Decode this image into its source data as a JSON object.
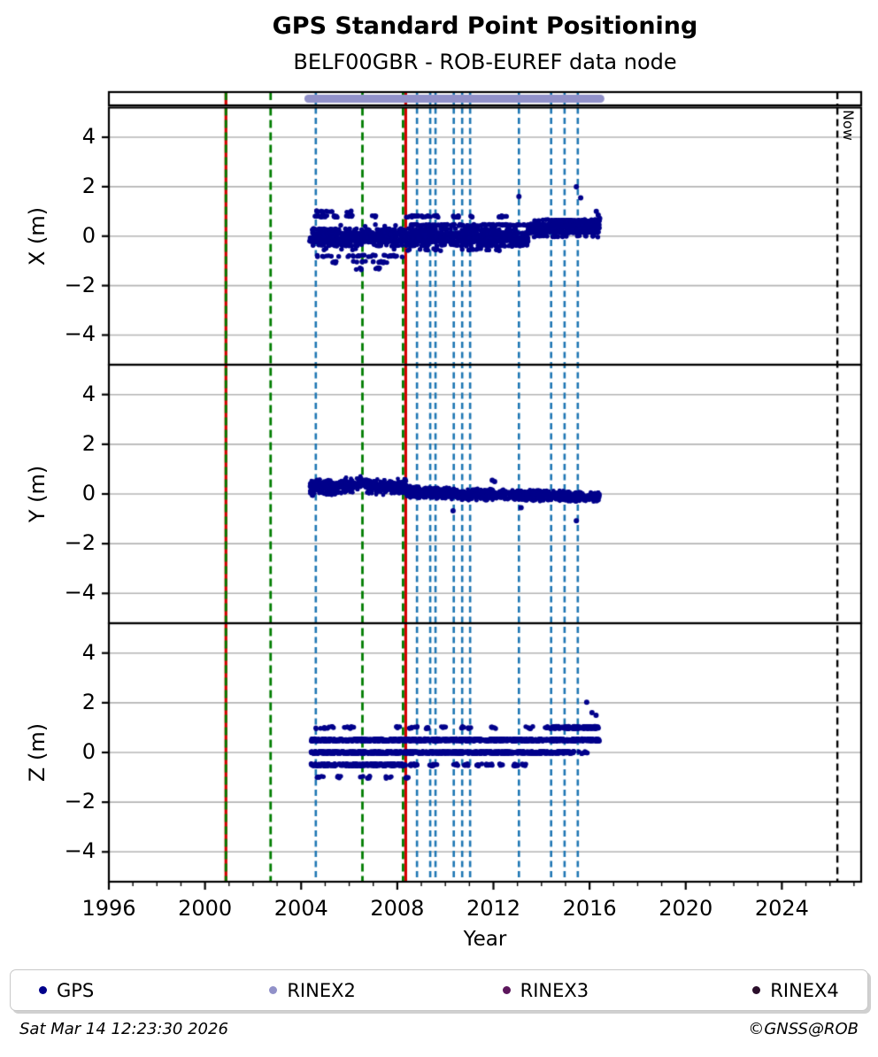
{
  "header": {
    "title": "GPS Standard Point Positioning",
    "subtitle": "BELF00GBR - ROB-EUREF data node"
  },
  "footer": {
    "timestamp": "Sat Mar 14 12:23:30 2026",
    "credit": "©GNSS@ROB"
  },
  "legend": [
    {
      "label": "GPS",
      "color": "#00008b"
    },
    {
      "label": "RINEX2",
      "color": "#9191c9"
    },
    {
      "label": "RINEX3",
      "color": "#5c165c"
    },
    {
      "label": "RINEX4",
      "color": "#2a0e2a"
    }
  ],
  "colors": {
    "gps": "#00008b",
    "rinex2_band": "#9191c9",
    "event_blue": "#1f77b4",
    "event_green": "#007d00",
    "event_red": "#d40000",
    "now_line": "#000000",
    "grid": "#b4b4b4",
    "spine": "#000000"
  },
  "chart_data": {
    "type": "scatter",
    "title": "GPS Standard Point Positioning",
    "subtitle": "BELF00GBR - ROB-EUREF data node",
    "xlabel": "Year",
    "x_range": [
      1996,
      2027.3
    ],
    "x_major_ticks": [
      1996,
      2000,
      2004,
      2008,
      2012,
      2016,
      2020,
      2024
    ],
    "x_tick_labels": [
      "1996",
      "2000",
      "2004",
      "2008",
      "2012",
      "2016",
      "2020",
      "2024"
    ],
    "x_minor_step": 1,
    "y_range": [
      -5.2,
      5.2
    ],
    "y_ticks": [
      4,
      2,
      0,
      -2,
      -4
    ],
    "y_tick_labels": [
      "4",
      "2",
      "0",
      "−2",
      "−4"
    ],
    "now_line": {
      "year": 2026.31,
      "label": "Now"
    },
    "strip": {
      "rinex2_span": [
        2004.3,
        2016.45
      ]
    },
    "events": {
      "green_dashed_years": [
        2000.87,
        2002.73,
        2006.55,
        2008.24
      ],
      "red_solid_years": [
        2000.87,
        2008.35
      ],
      "blue_dashed_years": [
        2004.61,
        2008.82,
        2009.37,
        2009.59,
        2010.35,
        2010.7,
        2011.03,
        2013.06,
        2014.4,
        2014.96,
        2015.51
      ]
    },
    "subplots": [
      {
        "id": "x",
        "ylabel": "X (m)",
        "clouds": [
          {
            "x0": 2004.35,
            "x1": 2013.45,
            "mean": -0.05,
            "spread": 0.46,
            "n": 1250,
            "quantize": 0.16
          },
          {
            "x0": 2013.45,
            "x1": 2016.42,
            "mean": 0.32,
            "spread": 0.36,
            "n": 430,
            "quantize": 0.16
          }
        ],
        "rows": [
          {
            "y": 0.8,
            "jitter": 0.04,
            "segments": [
              [
                2004.55,
                2005.15,
                12
              ],
              [
                2005.3,
                2005.58,
                7
              ],
              [
                2005.88,
                2006.15,
                7
              ],
              [
                2006.93,
                2007.12,
                4
              ],
              [
                2008.35,
                2009.7,
                30
              ],
              [
                2010.15,
                2010.55,
                9
              ],
              [
                2010.95,
                2011.12,
                4
              ],
              [
                2012.2,
                2012.58,
                9
              ]
            ]
          },
          {
            "y": 1.0,
            "jitter": 0.04,
            "segments": [
              [
                2004.6,
                2005.3,
                9
              ],
              [
                2005.85,
                2006.1,
                4
              ]
            ]
          },
          {
            "y": 0.45,
            "jitter": 0.03,
            "segments": [
              [
                2008.4,
                2013.45,
                90
              ]
            ]
          },
          {
            "y": 0.62,
            "jitter": 0.03,
            "segments": [
              [
                2014.4,
                2016.42,
                130
              ]
            ]
          },
          {
            "y": -0.8,
            "jitter": 0.04,
            "segments": [
              [
                2004.55,
                2008.3,
                34
              ]
            ]
          },
          {
            "y": -1.05,
            "jitter": 0.04,
            "segments": [
              [
                2005.2,
                2005.5,
                6
              ],
              [
                2005.9,
                2007.6,
                16
              ]
            ]
          },
          {
            "y": -1.32,
            "jitter": 0.04,
            "segments": [
              [
                2006.28,
                2006.52,
                4
              ],
              [
                2007.0,
                2007.38,
                5
              ]
            ]
          },
          {
            "y": -0.55,
            "jitter": 0.04,
            "segments": [
              [
                2008.4,
                2012.45,
                20
              ]
            ]
          }
        ],
        "outliers": [
          [
            2013.06,
            1.6
          ],
          [
            2015.45,
            2.0
          ],
          [
            2015.63,
            1.55
          ],
          [
            2016.28,
            1.0
          ],
          [
            2016.36,
            0.85
          ],
          [
            2016.42,
            0.72
          ]
        ]
      },
      {
        "id": "y",
        "ylabel": "Y (m)",
        "band": {
          "x0": 2004.35,
          "x1": 2016.42,
          "n": 1900,
          "mean_path": [
            [
              2004.35,
              0.22
            ],
            [
              2004.9,
              0.3
            ],
            [
              2005.4,
              0.22
            ],
            [
              2005.9,
              0.33
            ],
            [
              2006.4,
              0.42
            ],
            [
              2006.9,
              0.3
            ],
            [
              2007.4,
              0.3
            ],
            [
              2007.9,
              0.27
            ],
            [
              2008.35,
              0.3
            ],
            [
              2008.45,
              0.08
            ],
            [
              2009.5,
              0.05
            ],
            [
              2010.5,
              0.0
            ],
            [
              2011.5,
              -0.02
            ],
            [
              2012.5,
              -0.03
            ],
            [
              2013.5,
              -0.07
            ],
            [
              2014.5,
              -0.08
            ],
            [
              2015.5,
              -0.1
            ],
            [
              2016.42,
              -0.1
            ]
          ],
          "spread_path": [
            [
              2004.35,
              0.32
            ],
            [
              2008.35,
              0.3
            ],
            [
              2008.45,
              0.24
            ],
            [
              2016.42,
              0.2
            ]
          ]
        },
        "outliers": [
          [
            2010.32,
            -0.68
          ],
          [
            2011.95,
            0.55
          ],
          [
            2012.05,
            0.5
          ],
          [
            2013.15,
            -0.55
          ],
          [
            2015.45,
            -1.08
          ]
        ]
      },
      {
        "id": "z",
        "ylabel": "Z (m)",
        "rows": [
          {
            "y": 0.5,
            "jitter": 0.05,
            "segments": [
              [
                2004.4,
                2016.42,
                950
              ]
            ]
          },
          {
            "y": 0.0,
            "jitter": 0.05,
            "segments": [
              [
                2004.4,
                2015.35,
                880
              ],
              [
                2015.35,
                2015.95,
                8
              ]
            ]
          },
          {
            "y": -0.5,
            "jitter": 0.05,
            "segments": [
              [
                2004.4,
                2008.35,
                260
              ],
              [
                2008.42,
                2008.85,
                12
              ],
              [
                2009.3,
                2009.65,
                9
              ],
              [
                2010.28,
                2010.55,
                7
              ],
              [
                2010.78,
                2010.95,
                5
              ],
              [
                2011.3,
                2011.95,
                14
              ],
              [
                2012.25,
                2012.42,
                5
              ],
              [
                2012.8,
                2013.05,
                8
              ],
              [
                2013.18,
                2013.4,
                6
              ]
            ]
          },
          {
            "y": 1.0,
            "jitter": 0.05,
            "segments": [
              [
                2004.6,
                2005.35,
                14
              ],
              [
                2005.75,
                2006.2,
                9
              ],
              [
                2007.95,
                2008.12,
                4
              ],
              [
                2008.5,
                2008.85,
                7
              ],
              [
                2009.15,
                2009.32,
                4
              ],
              [
                2009.8,
                2010.05,
                6
              ],
              [
                2010.6,
                2011.1,
                9
              ],
              [
                2011.9,
                2012.15,
                5
              ],
              [
                2013.25,
                2013.65,
                7
              ],
              [
                2014.15,
                2014.45,
                6
              ],
              [
                2014.5,
                2016.4,
                160
              ]
            ]
          },
          {
            "y": -1.0,
            "jitter": 0.05,
            "segments": [
              [
                2004.65,
                2004.95,
                6
              ],
              [
                2005.5,
                2005.72,
                4
              ],
              [
                2006.45,
                2006.85,
                7
              ],
              [
                2007.5,
                2007.75,
                5
              ],
              [
                2008.3,
                2008.55,
                5
              ]
            ]
          }
        ],
        "outliers": [
          [
            2015.88,
            2.02
          ],
          [
            2016.1,
            1.6
          ],
          [
            2016.27,
            1.5
          ]
        ]
      }
    ]
  }
}
